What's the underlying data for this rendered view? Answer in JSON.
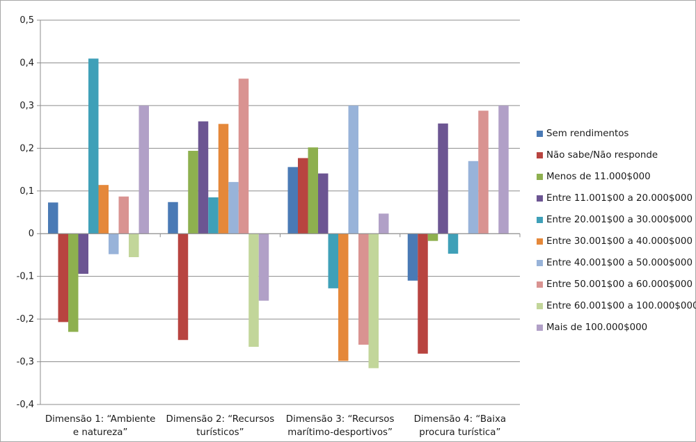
{
  "chart_data": {
    "type": "bar",
    "categories": [
      [
        "Dimensão 1: “Ambiente",
        "e natureza”"
      ],
      [
        "Dimensão 2: “Recursos",
        "turísticos”"
      ],
      [
        "Dimensão 3: “Recursos",
        "marítimo-desportivos”"
      ],
      [
        "Dimensão 4: “Baixa",
        "procura turística”"
      ]
    ],
    "ylim": [
      -0.4,
      0.5
    ],
    "yticks": [
      "-0,4",
      "-0,3",
      "-0,2",
      "-0,1",
      "0",
      "0,1",
      "0,2",
      "0,3",
      "0,4",
      "0,5"
    ],
    "ytick_values": [
      -0.4,
      -0.3,
      -0.2,
      -0.1,
      0,
      0.1,
      0.2,
      0.3,
      0.4,
      0.5
    ],
    "grid": true,
    "legend_position": "right",
    "series": [
      {
        "name": "Sem rendimentos",
        "color": "#4a7ab5",
        "values": [
          0.073,
          0.074,
          0.156,
          -0.11
        ]
      },
      {
        "name": "Não sabe/Não responde",
        "color": "#b84440",
        "values": [
          -0.207,
          -0.249,
          0.177,
          -0.281
        ]
      },
      {
        "name": "Menos de 11.000$000",
        "color": "#8eb04f",
        "values": [
          -0.23,
          0.194,
          0.202,
          -0.017
        ]
      },
      {
        "name": "Entre 11.001$00 a 20.000$000",
        "color": "#6c5592",
        "values": [
          -0.094,
          0.263,
          0.141,
          0.258
        ]
      },
      {
        "name": "Entre 20.001$00 a 30.000$000",
        "color": "#3fa0b8",
        "values": [
          0.41,
          0.085,
          -0.128,
          -0.047
        ]
      },
      {
        "name": "Entre 30.001$00 a 40.000$000",
        "color": "#e5883a",
        "values": [
          0.114,
          0.257,
          -0.298,
          0
        ]
      },
      {
        "name": "Entre 40.001$00 a 50.000$000",
        "color": "#98b3d9",
        "values": [
          -0.048,
          0.121,
          0.3,
          0.17
        ]
      },
      {
        "name": "Entre 50.001$00 a 60.000$000",
        "color": "#d99391",
        "values": [
          0.087,
          0.363,
          -0.26,
          0.288
        ]
      },
      {
        "name": "Entre 60.001$00 a 100.000$000",
        "color": "#c2d69a",
        "values": [
          -0.055,
          -0.265,
          -0.315,
          0
        ]
      },
      {
        "name": "Mais de 100.000$000",
        "color": "#b1a0c7",
        "values": [
          0.3,
          -0.157,
          0.047,
          0.3
        ]
      }
    ]
  }
}
